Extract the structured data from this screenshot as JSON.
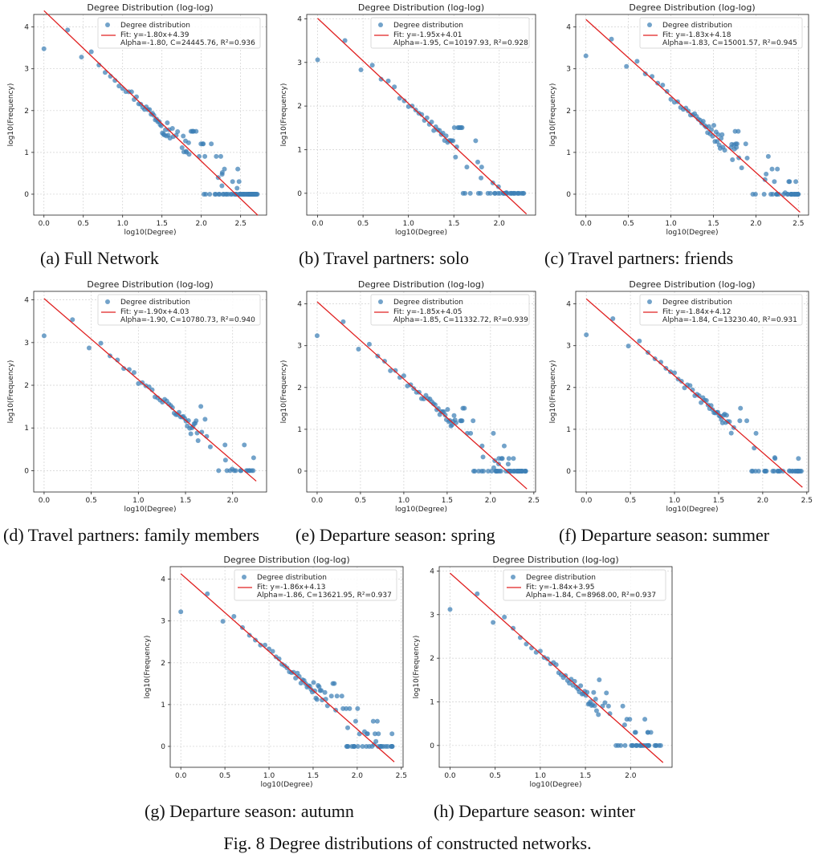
{
  "figure_caption": "Fig. 8 Degree distributions of constructed networks.",
  "style": {
    "scatter_color": "#3d7fb5",
    "fit_color": "#e02020",
    "grid_color": "#d0d0d0"
  },
  "chart_data": [
    {
      "id": "a",
      "type": "scatter",
      "caption": "(a) Full Network",
      "title": "Degree Distribution (log-log)",
      "xlabel": "log10(Degree)",
      "ylabel": "log10(Frequency)",
      "xlim": [
        -0.13,
        2.83
      ],
      "ylim": [
        -0.5,
        4.3
      ],
      "xticks": [
        "0.0",
        "0.5",
        "1.0",
        "1.5",
        "2.0",
        "2.5"
      ],
      "xtick_values": [
        0,
        0.5,
        1,
        1.5,
        2,
        2.5
      ],
      "yticks": [
        "0",
        "1",
        "2",
        "3",
        "4"
      ],
      "ytick_values": [
        0,
        1,
        2,
        3,
        4
      ],
      "legend": {
        "scatter": "Degree distribution",
        "fit": "Fit: y=-1.80x+4.39",
        "stats": "Alpha=-1.80, C=24445.76, R²=0.936"
      },
      "slope": -1.8,
      "intercept": 4.39,
      "fit_x": [
        0,
        2.72
      ],
      "scatter_params": {
        "max_x": 2.72,
        "zero_start": 2.0,
        "y0": 3.48
      }
    },
    {
      "id": "b",
      "type": "scatter",
      "caption": "(b) Travel partners: solo",
      "title": "Degree Distribution (log-log)",
      "xlabel": "log10(Degree)",
      "ylabel": "log10(Frequency)",
      "xlim": [
        -0.12,
        2.4
      ],
      "ylim": [
        -0.5,
        4.1
      ],
      "xticks": [
        "0.0",
        "0.5",
        "1.0",
        "1.5",
        "2.0"
      ],
      "xtick_values": [
        0,
        0.5,
        1,
        1.5,
        2
      ],
      "yticks": [
        "0",
        "1",
        "2",
        "3",
        "4"
      ],
      "ytick_values": [
        0,
        1,
        2,
        3,
        4
      ],
      "legend": {
        "scatter": "Degree distribution",
        "fit": "Fit: y=-1.95x+4.01",
        "stats": "Alpha=-1.95, C=10197.93, R²=0.928"
      },
      "slope": -1.95,
      "intercept": 4.01,
      "fit_x": [
        0,
        2.3
      ],
      "scatter_params": {
        "max_x": 2.28,
        "zero_start": 1.6,
        "y0": 3.06
      }
    },
    {
      "id": "c",
      "type": "scatter",
      "caption": "(c) Travel partners: friends",
      "title": "Degree Distribution (log-log)",
      "xlabel": "log10(Degree)",
      "ylabel": "log10(Frequency)",
      "xlim": [
        -0.12,
        2.62
      ],
      "ylim": [
        -0.5,
        4.3
      ],
      "xticks": [
        "0.0",
        "0.5",
        "1.0",
        "1.5",
        "2.0",
        "2.5"
      ],
      "xtick_values": [
        0,
        0.5,
        1,
        1.5,
        2,
        2.5
      ],
      "yticks": [
        "0",
        "1",
        "2",
        "3",
        "4"
      ],
      "ytick_values": [
        0,
        1,
        2,
        3,
        4
      ],
      "legend": {
        "scatter": "Degree distribution",
        "fit": "Fit: y=-1.83x+4.18",
        "stats": "Alpha=-1.83, C=15001.57, R²=0.945"
      },
      "slope": -1.83,
      "intercept": 4.18,
      "fit_x": [
        0,
        2.52
      ],
      "scatter_params": {
        "max_x": 2.52,
        "zero_start": 1.9,
        "y0": 3.31
      }
    },
    {
      "id": "d",
      "type": "scatter",
      "caption": "(d) Travel partners: family members",
      "title": "Degree Distribution (log-log)",
      "xlabel": "log10(Degree)",
      "ylabel": "log10(Frequency)",
      "xlim": [
        -0.11,
        2.36
      ],
      "ylim": [
        -0.5,
        4.2
      ],
      "xticks": [
        "0.0",
        "0.5",
        "1.0",
        "1.5",
        "2.0"
      ],
      "xtick_values": [
        0,
        0.5,
        1,
        1.5,
        2
      ],
      "yticks": [
        "0",
        "1",
        "2",
        "3",
        "4"
      ],
      "ytick_values": [
        0,
        1,
        2,
        3,
        4
      ],
      "legend": {
        "scatter": "Degree distribution",
        "fit": "Fit: y=-1.90x+4.03",
        "stats": "Alpha=-1.90, C=10780.73, R²=0.940"
      },
      "slope": -1.9,
      "intercept": 4.03,
      "fit_x": [
        0,
        2.25
      ],
      "scatter_params": {
        "max_x": 2.23,
        "zero_start": 1.8,
        "y0": 3.16
      }
    },
    {
      "id": "e",
      "type": "scatter",
      "caption": "(e) Departure season: spring",
      "title": "Degree Distribution (log-log)",
      "xlabel": "log10(Degree)",
      "ylabel": "log10(Frequency)",
      "xlim": [
        -0.12,
        2.52
      ],
      "ylim": [
        -0.5,
        4.3
      ],
      "xticks": [
        "0.0",
        "0.5",
        "1.0",
        "1.5",
        "2.0",
        "2.5"
      ],
      "xtick_values": [
        0,
        0.5,
        1,
        1.5,
        2,
        2.5
      ],
      "yticks": [
        "0",
        "1",
        "2",
        "3",
        "4"
      ],
      "ytick_values": [
        0,
        1,
        2,
        3,
        4
      ],
      "legend": {
        "scatter": "Degree distribution",
        "fit": "Fit: y=-1.85x+4.05",
        "stats": "Alpha=-1.85, C=11332.72, R²=0.939"
      },
      "slope": -1.85,
      "intercept": 4.05,
      "fit_x": [
        0,
        2.42
      ],
      "scatter_params": {
        "max_x": 2.42,
        "zero_start": 1.8,
        "y0": 3.24
      }
    },
    {
      "id": "f",
      "type": "scatter",
      "caption": "(f) Departure season: summer",
      "title": "Degree Distribution (log-log)",
      "xlabel": "log10(Degree)",
      "ylabel": "log10(Frequency)",
      "xlim": [
        -0.12,
        2.52
      ],
      "ylim": [
        -0.5,
        4.3
      ],
      "xticks": [
        "0.0",
        "0.5",
        "1.0",
        "1.5",
        "2.0",
        "2.5"
      ],
      "xtick_values": [
        0,
        0.5,
        1,
        1.5,
        2,
        2.5
      ],
      "yticks": [
        "0",
        "1",
        "2",
        "3",
        "4"
      ],
      "ytick_values": [
        0,
        1,
        2,
        3,
        4
      ],
      "legend": {
        "scatter": "Degree distribution",
        "fit": "Fit: y=-1.84x+4.12",
        "stats": "Alpha=-1.84, C=13230.40, R²=0.931"
      },
      "slope": -1.84,
      "intercept": 4.12,
      "fit_x": [
        0,
        2.45
      ],
      "scatter_params": {
        "max_x": 2.45,
        "zero_start": 1.85,
        "y0": 3.26
      }
    },
    {
      "id": "g",
      "type": "scatter",
      "caption": "(g) Departure season: autumn",
      "title": "Degree Distribution (log-log)",
      "xlabel": "log10(Degree)",
      "ylabel": "log10(Frequency)",
      "xlim": [
        -0.12,
        2.52
      ],
      "ylim": [
        -0.5,
        4.3
      ],
      "xticks": [
        "0.0",
        "0.5",
        "1.0",
        "1.5",
        "2.0",
        "2.5"
      ],
      "xtick_values": [
        0,
        0.5,
        1,
        1.5,
        2,
        2.5
      ],
      "yticks": [
        "0",
        "1",
        "2",
        "3",
        "4"
      ],
      "ytick_values": [
        0,
        1,
        2,
        3,
        4
      ],
      "legend": {
        "scatter": "Degree distribution",
        "fit": "Fit: y=-1.86x+4.13",
        "stats": "Alpha=-1.86, C=13621.95, R²=0.937"
      },
      "slope": -1.86,
      "intercept": 4.13,
      "fit_x": [
        0,
        2.42
      ],
      "scatter_params": {
        "max_x": 2.4,
        "zero_start": 1.85,
        "y0": 3.22
      }
    },
    {
      "id": "h",
      "type": "scatter",
      "caption": "(h) Departure season: winter",
      "title": "Degree Distribution (log-log)",
      "xlabel": "log10(Degree)",
      "ylabel": "log10(Frequency)",
      "xlim": [
        -0.12,
        2.46
      ],
      "ylim": [
        -0.5,
        4.1
      ],
      "xticks": [
        "0.0",
        "0.5",
        "1.0",
        "1.5",
        "2.0"
      ],
      "xtick_values": [
        0,
        0.5,
        1,
        1.5,
        2
      ],
      "yticks": [
        "0",
        "1",
        "2",
        "3",
        "4"
      ],
      "ytick_values": [
        0,
        1,
        2,
        3,
        4
      ],
      "legend": {
        "scatter": "Degree distribution",
        "fit": "Fit: y=-1.84x+3.95",
        "stats": "Alpha=-1.84, C=8968.00, R²=0.937"
      },
      "slope": -1.84,
      "intercept": 3.95,
      "fit_x": [
        0,
        2.36
      ],
      "scatter_params": {
        "max_x": 2.35,
        "zero_start": 1.8,
        "y0": 3.12
      }
    }
  ]
}
